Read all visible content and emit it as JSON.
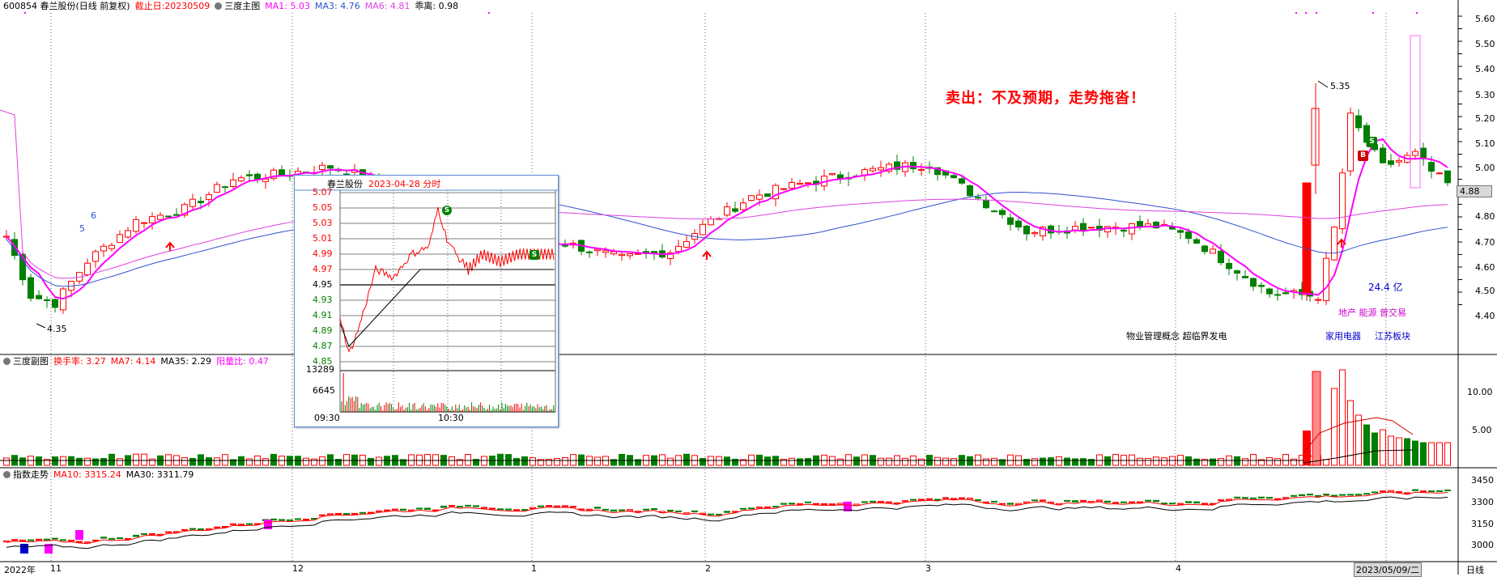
{
  "main_header": {
    "stock": "600854 春兰股份(日线 前复权)",
    "cutoff": "截止日:20230509",
    "panel_title": "三度主图",
    "ma1": "MA1: 5.03",
    "ma3": "MA3: 4.76",
    "ma6": "MA6: 4.81",
    "deviation": "乖离: 0.98"
  },
  "sub_header": {
    "panel_title": "三度副图",
    "turnover": "换手率: 3.27",
    "ma7": "MA7: 4.14",
    "ma35": "MA35: 2.29",
    "yang_yin": "阳量比: 0.47"
  },
  "index_header": {
    "panel_title": "指数走势",
    "ma10": "MA10: 3315.24",
    "ma30": "MA30: 3311.79"
  },
  "annotation": "卖出：不及预期，走势拖沓！",
  "price_axis": [
    "5.60",
    "5.50",
    "5.40",
    "5.30",
    "5.20",
    "5.10",
    "5.00",
    "4.80",
    "4.70",
    "4.60",
    "4.50",
    "4.40"
  ],
  "current_price": "4.88",
  "sub_axis": [
    "10.00",
    "5.00"
  ],
  "index_axis": [
    "3450",
    "3300",
    "3150",
    "3000"
  ],
  "x_labels": [
    "2022年",
    "11",
    "12",
    "1",
    "2",
    "3",
    "4"
  ],
  "x_date_box": "2023/05/09/二",
  "period_label": "日线",
  "markers": {
    "low_price": "4.35",
    "high_price": "5.35",
    "ma_label_6": "6",
    "ma_label_5": "5",
    "volume_amount": "24.4 亿",
    "buy_badge": "B",
    "sell_badge": "S"
  },
  "concept_tags": {
    "tag1": "物业管理概念 超临界发电",
    "tag2": "地产 能源 曾交易",
    "tag3": "家用电器",
    "tag4": "江苏板块"
  },
  "popup": {
    "name": "春兰股份",
    "date": "2023-04-28 分时",
    "prices_red": [
      "5.07",
      "5.05",
      "5.03",
      "5.01",
      "4.99",
      "4.97"
    ],
    "price_mid": "4.95",
    "prices_green": [
      "4.93",
      "4.91",
      "4.89",
      "4.87",
      "4.85"
    ],
    "vol_labels": [
      "13289",
      "6645"
    ],
    "times": [
      "09:30",
      "10:30"
    ],
    "sell_badge": "S"
  },
  "colors": {
    "up": "#ff0000",
    "down": "#007f00",
    "ma_magenta": "#ff00ff",
    "ma_blue": "#3050d0",
    "ma_pink": "#e040e0"
  }
}
